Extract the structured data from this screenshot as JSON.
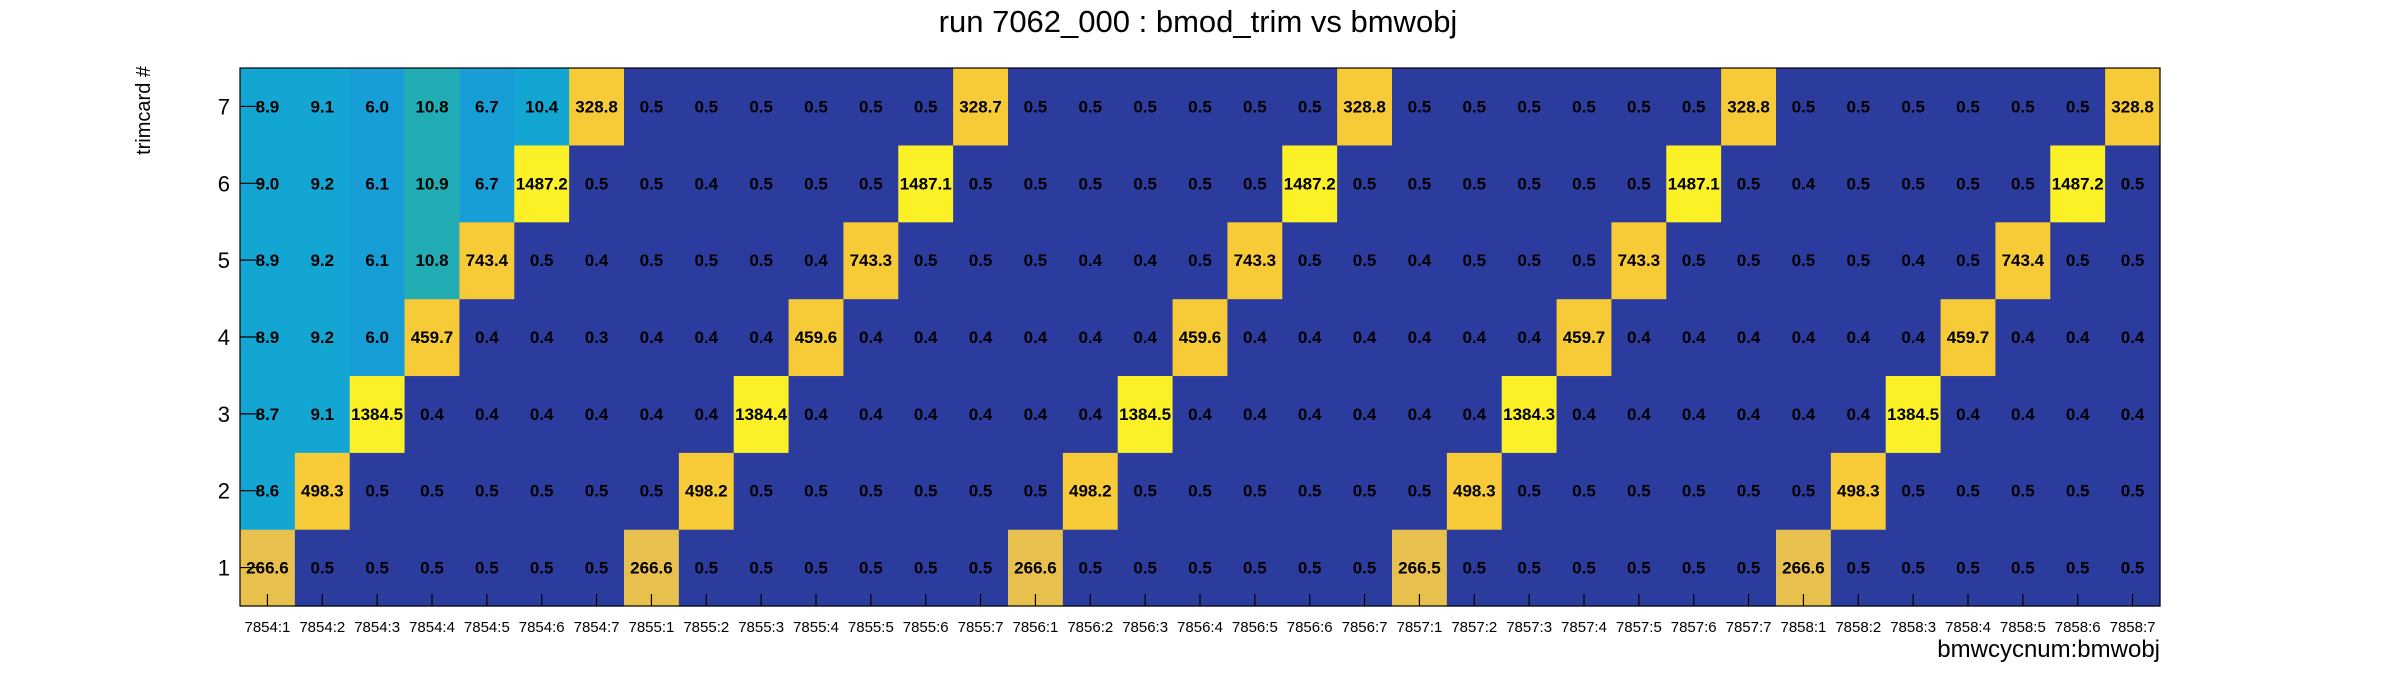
{
  "chart_data": {
    "type": "heatmap",
    "title": "run 7062_000 : bmod_trim vs bmwobj",
    "xlabel": "bmwcycnum:bmwobj",
    "ylabel": "trimcard #",
    "x_categories": [
      "7854:1",
      "7854:2",
      "7854:3",
      "7854:4",
      "7854:5",
      "7854:6",
      "7854:7",
      "7855:1",
      "7855:2",
      "7855:3",
      "7855:4",
      "7855:5",
      "7855:6",
      "7855:7",
      "7856:1",
      "7856:2",
      "7856:3",
      "7856:4",
      "7856:5",
      "7856:6",
      "7856:7",
      "7857:1",
      "7857:2",
      "7857:3",
      "7857:4",
      "7857:5",
      "7857:6",
      "7857:7",
      "7858:1",
      "7858:2",
      "7858:3",
      "7858:4",
      "7858:5",
      "7858:6",
      "7858:7"
    ],
    "y_categories": [
      "1",
      "2",
      "3",
      "4",
      "5",
      "6",
      "7"
    ],
    "values": [
      [
        "266.6",
        "0.5",
        "0.5",
        "0.5",
        "0.5",
        "0.5",
        "0.5",
        "266.6",
        "0.5",
        "0.5",
        "0.5",
        "0.5",
        "0.5",
        "0.5",
        "266.6",
        "0.5",
        "0.5",
        "0.5",
        "0.5",
        "0.5",
        "0.5",
        "266.5",
        "0.5",
        "0.5",
        "0.5",
        "0.5",
        "0.5",
        "0.5",
        "266.6",
        "0.5",
        "0.5",
        "0.5",
        "0.5",
        "0.5",
        "0.5"
      ],
      [
        "8.6",
        "498.3",
        "0.5",
        "0.5",
        "0.5",
        "0.5",
        "0.5",
        "0.5",
        "498.2",
        "0.5",
        "0.5",
        "0.5",
        "0.5",
        "0.5",
        "0.5",
        "498.2",
        "0.5",
        "0.5",
        "0.5",
        "0.5",
        "0.5",
        "0.5",
        "498.3",
        "0.5",
        "0.5",
        "0.5",
        "0.5",
        "0.5",
        "0.5",
        "498.3",
        "0.5",
        "0.5",
        "0.5",
        "0.5",
        "0.5"
      ],
      [
        "8.7",
        "9.1",
        "1384.5",
        "0.4",
        "0.4",
        "0.4",
        "0.4",
        "0.4",
        "0.4",
        "1384.4",
        "0.4",
        "0.4",
        "0.4",
        "0.4",
        "0.4",
        "0.4",
        "1384.5",
        "0.4",
        "0.4",
        "0.4",
        "0.4",
        "0.4",
        "0.4",
        "1384.3",
        "0.4",
        "0.4",
        "0.4",
        "0.4",
        "0.4",
        "0.4",
        "1384.5",
        "0.4",
        "0.4",
        "0.4",
        "0.4"
      ],
      [
        "8.9",
        "9.2",
        "6.0",
        "459.7",
        "0.4",
        "0.4",
        "0.3",
        "0.4",
        "0.4",
        "0.4",
        "459.6",
        "0.4",
        "0.4",
        "0.4",
        "0.4",
        "0.4",
        "0.4",
        "459.6",
        "0.4",
        "0.4",
        "0.4",
        "0.4",
        "0.4",
        "0.4",
        "459.7",
        "0.4",
        "0.4",
        "0.4",
        "0.4",
        "0.4",
        "0.4",
        "459.7",
        "0.4",
        "0.4",
        "0.4"
      ],
      [
        "8.9",
        "9.2",
        "6.1",
        "10.8",
        "743.4",
        "0.5",
        "0.4",
        "0.5",
        "0.5",
        "0.5",
        "0.4",
        "743.3",
        "0.5",
        "0.5",
        "0.5",
        "0.4",
        "0.4",
        "0.5",
        "743.3",
        "0.5",
        "0.5",
        "0.4",
        "0.5",
        "0.5",
        "0.5",
        "743.3",
        "0.5",
        "0.5",
        "0.5",
        "0.5",
        "0.4",
        "0.5",
        "743.4",
        "0.5",
        "0.5"
      ],
      [
        "9.0",
        "9.2",
        "6.1",
        "10.9",
        "6.7",
        "1487.2",
        "0.5",
        "0.5",
        "0.4",
        "0.5",
        "0.5",
        "0.5",
        "1487.1",
        "0.5",
        "0.5",
        "0.5",
        "0.5",
        "0.5",
        "0.5",
        "1487.2",
        "0.5",
        "0.5",
        "0.5",
        "0.5",
        "0.5",
        "0.5",
        "1487.1",
        "0.5",
        "0.4",
        "0.5",
        "0.5",
        "0.5",
        "0.5",
        "1487.2",
        "0.5"
      ],
      [
        "8.9",
        "9.1",
        "6.0",
        "10.8",
        "6.7",
        "10.4",
        "328.8",
        "0.5",
        "0.5",
        "0.5",
        "0.5",
        "0.5",
        "0.5",
        "328.7",
        "0.5",
        "0.5",
        "0.5",
        "0.5",
        "0.5",
        "0.5",
        "328.8",
        "0.5",
        "0.5",
        "0.5",
        "0.5",
        "0.5",
        "0.5",
        "328.8",
        "0.5",
        "0.5",
        "0.5",
        "0.5",
        "0.5",
        "0.5",
        "328.8"
      ]
    ],
    "colors": {
      "low": "#2b3c9e",
      "teal": "#22adb5",
      "cyan": "#14a6d2",
      "sky": "#189ed6",
      "yellow": "#fcf127",
      "gold": "#f7cb37",
      "amber": "#e8c04e"
    },
    "grid": false,
    "legend": "none"
  }
}
